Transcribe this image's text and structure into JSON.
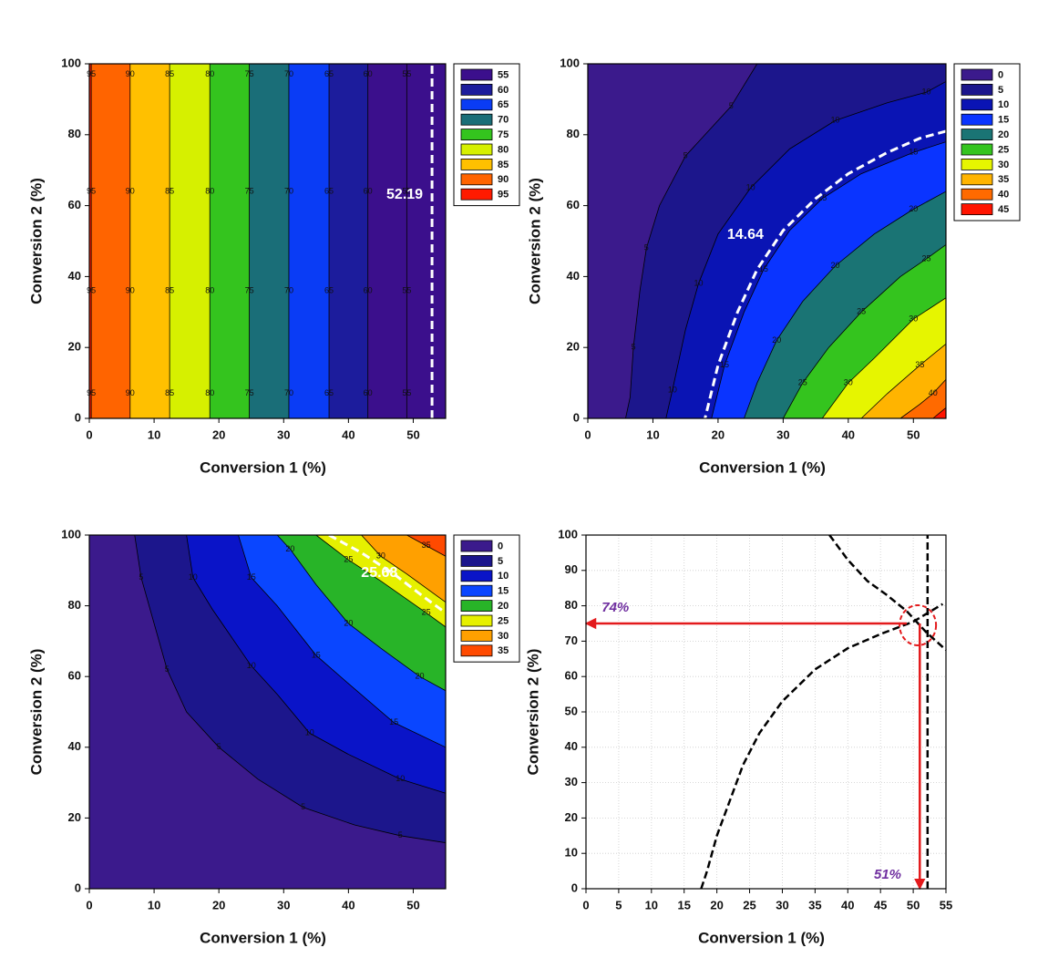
{
  "chart_data": [
    {
      "type": "contour",
      "xlabel": "Conversion 1 (%)",
      "ylabel": "Conversion 2 (%)",
      "xlim": [
        0,
        55
      ],
      "ylim": [
        0,
        100
      ],
      "xticks": [
        0,
        10,
        20,
        30,
        40,
        50
      ],
      "yticks": [
        0,
        20,
        40,
        60,
        80,
        100
      ],
      "levels": [
        55,
        60,
        65,
        70,
        75,
        80,
        85,
        90,
        95
      ],
      "level_colors": [
        "#3b0f8c",
        "#1c1c9c",
        "#0a3cf5",
        "#1a6e78",
        "#34c41e",
        "#d6f000",
        "#ffc000",
        "#ff6400",
        "#ff1a00"
      ],
      "contours": [
        {
          "level": 55,
          "x": [
            49,
            49,
            49,
            49,
            49,
            49,
            49,
            49,
            49
          ],
          "y": [
            0,
            7,
            20,
            36,
            50,
            64,
            80,
            97,
            100
          ]
        },
        {
          "level": 60,
          "x": [
            43,
            43,
            43,
            43,
            43,
            43,
            43,
            43,
            43
          ],
          "y": [
            0,
            7,
            20,
            36,
            50,
            64,
            80,
            97,
            100
          ]
        },
        {
          "level": 65,
          "x": [
            37,
            37,
            37,
            37,
            37,
            37,
            37,
            37,
            37
          ],
          "y": [
            0,
            7,
            20,
            36,
            50,
            64,
            80,
            97,
            100
          ]
        },
        {
          "level": 70,
          "x": [
            30.8,
            30.8,
            30.8,
            30.8,
            30.8,
            30.8,
            30.8,
            30.8,
            30.8
          ],
          "y": [
            0,
            7,
            20,
            36,
            50,
            64,
            80,
            97,
            100
          ]
        },
        {
          "level": 75,
          "x": [
            24.7,
            24.7,
            24.7,
            24.7,
            24.7,
            24.7,
            24.7,
            24.7,
            24.7
          ],
          "y": [
            0,
            7,
            20,
            36,
            50,
            64,
            80,
            97,
            100
          ]
        },
        {
          "level": 80,
          "x": [
            18.6,
            18.6,
            18.6,
            18.6,
            18.6,
            18.6,
            18.6,
            18.6,
            18.6
          ],
          "y": [
            0,
            7,
            20,
            36,
            50,
            64,
            80,
            97,
            100
          ]
        },
        {
          "level": 85,
          "x": [
            12.4,
            12.4,
            12.4,
            12.4,
            12.4,
            12.4,
            12.4,
            12.4,
            12.4
          ],
          "y": [
            0,
            7,
            20,
            36,
            50,
            64,
            80,
            97,
            100
          ]
        },
        {
          "level": 90,
          "x": [
            6.3,
            6.3,
            6.3,
            6.3,
            6.3,
            6.3,
            6.3,
            6.3,
            6.3
          ],
          "y": [
            0,
            7,
            20,
            36,
            50,
            64,
            80,
            97,
            100
          ]
        },
        {
          "level": 95,
          "x": [
            0.3,
            0.3,
            0.3,
            0.3,
            0.3,
            0.3,
            0.3,
            0.3,
            0.3
          ],
          "y": [
            0,
            7,
            20,
            36,
            50,
            64,
            80,
            97,
            100
          ]
        }
      ],
      "highlight": {
        "level": 52.19,
        "x": [
          52.9,
          52.9
        ],
        "y": [
          0,
          100
        ],
        "color": "#ffffff"
      }
    },
    {
      "type": "contour",
      "xlabel": "Conversion 1 (%)",
      "ylabel": "Conversion 2 (%)",
      "xlim": [
        0,
        55
      ],
      "ylim": [
        0,
        100
      ],
      "xticks": [
        0,
        10,
        20,
        30,
        40,
        50
      ],
      "yticks": [
        0,
        20,
        40,
        60,
        80,
        100
      ],
      "levels": [
        0,
        5,
        10,
        15,
        20,
        25,
        30,
        35,
        40,
        45
      ],
      "level_colors": [
        "#3b1a8c",
        "#1c168c",
        "#0a14b4",
        "#0a34ff",
        "#1a7474",
        "#34c41e",
        "#e6f500",
        "#ffb400",
        "#ff6a00",
        "#ff1400"
      ],
      "contours": [
        {
          "level": 5,
          "x": [
            26,
            22,
            19,
            15,
            11,
            9,
            8,
            7,
            6.5,
            5.8
          ],
          "y": [
            100,
            88,
            82,
            74,
            60,
            48,
            36,
            20,
            6,
            0
          ]
        },
        {
          "level": 10,
          "x": [
            55,
            52,
            46,
            38,
            31,
            25,
            20,
            17,
            15,
            13,
            12
          ],
          "y": [
            95,
            92,
            89,
            84,
            76,
            65,
            52,
            38,
            25,
            8,
            0
          ]
        },
        {
          "level": 15,
          "x": [
            55,
            50,
            42,
            36,
            31,
            27,
            24,
            21,
            19
          ],
          "y": [
            78,
            75,
            69,
            62,
            53,
            42,
            30,
            15,
            0
          ]
        },
        {
          "level": 20,
          "x": [
            55,
            50,
            44,
            38,
            33,
            29,
            26,
            24
          ],
          "y": [
            64,
            59,
            52,
            43,
            33,
            22,
            10,
            0
          ]
        },
        {
          "level": 25,
          "x": [
            55,
            52,
            48,
            42,
            37,
            33,
            30
          ],
          "y": [
            49,
            45,
            40,
            30,
            20,
            10,
            0
          ]
        },
        {
          "level": 30,
          "x": [
            55,
            50,
            44,
            40,
            36
          ],
          "y": [
            34,
            28,
            17,
            10,
            0
          ]
        },
        {
          "level": 35,
          "x": [
            55,
            51,
            46,
            42
          ],
          "y": [
            21,
            15,
            7,
            0
          ]
        },
        {
          "level": 40,
          "x": [
            55,
            53,
            51,
            48
          ],
          "y": [
            11,
            7,
            4,
            0
          ]
        },
        {
          "level": 45,
          "x": [
            55,
            53
          ],
          "y": [
            3,
            0
          ]
        }
      ],
      "highlight": {
        "level": 14.64,
        "x": [
          55,
          51,
          46,
          40,
          35,
          30,
          26,
          23,
          20,
          18
        ],
        "y": [
          81,
          79,
          75,
          69,
          62,
          53,
          42,
          30,
          15,
          0
        ],
        "color": "#ffffff"
      }
    },
    {
      "type": "contour",
      "xlabel": "Conversion 1 (%)",
      "ylabel": "Conversion 2 (%)",
      "xlim": [
        0,
        55
      ],
      "ylim": [
        0,
        100
      ],
      "xticks": [
        0,
        10,
        20,
        30,
        40,
        50
      ],
      "yticks": [
        0,
        20,
        40,
        60,
        80,
        100
      ],
      "levels": [
        0,
        5,
        10,
        15,
        20,
        25,
        30,
        35
      ],
      "level_colors": [
        "#3b1a8c",
        "#1c168c",
        "#0a14c8",
        "#0a46ff",
        "#28b428",
        "#e6f000",
        "#ffa000",
        "#ff4a00"
      ],
      "contours": [
        {
          "level": 5,
          "x": [
            7,
            8,
            10,
            12,
            15,
            20,
            26,
            33,
            41,
            48,
            55
          ],
          "y": [
            100,
            88,
            75,
            62,
            50,
            40,
            31,
            23,
            18,
            15,
            13
          ]
        },
        {
          "level": 10,
          "x": [
            15,
            16,
            19,
            25,
            29,
            34,
            40,
            48,
            55
          ],
          "y": [
            100,
            88,
            79,
            63,
            55,
            44,
            38,
            31,
            27
          ]
        },
        {
          "level": 15,
          "x": [
            23,
            25,
            29,
            35,
            40,
            47,
            55
          ],
          "y": [
            100,
            88,
            80,
            66,
            58,
            47,
            40
          ]
        },
        {
          "level": 20,
          "x": [
            29,
            31,
            35,
            40,
            45,
            51,
            55
          ],
          "y": [
            100,
            96,
            86,
            75,
            68,
            60,
            56
          ]
        },
        {
          "level": 25,
          "x": [
            35,
            40,
            45,
            52,
            55
          ],
          "y": [
            100,
            93,
            87,
            78,
            74
          ]
        },
        {
          "level": 30,
          "x": [
            42,
            45,
            49,
            55
          ],
          "y": [
            100,
            94,
            89,
            81
          ]
        },
        {
          "level": 35,
          "x": [
            49,
            52,
            55
          ],
          "y": [
            100,
            97,
            94
          ]
        }
      ],
      "highlight": {
        "level": 25.68,
        "x": [
          37,
          42,
          47,
          52,
          55
        ],
        "y": [
          100,
          95,
          89,
          82,
          78
        ],
        "color": "#ffffff"
      }
    },
    {
      "type": "line",
      "xlabel": "Conversion 1 (%)",
      "ylabel": "Conversion 2 (%)",
      "xlim": [
        0,
        55
      ],
      "ylim": [
        0,
        100
      ],
      "xticks": [
        0,
        5,
        10,
        15,
        20,
        25,
        30,
        35,
        40,
        45,
        50,
        55
      ],
      "yticks": [
        0,
        10,
        20,
        30,
        40,
        50,
        60,
        70,
        80,
        90,
        100
      ],
      "grid": true,
      "dashed": true,
      "series": [
        {
          "color": "#000000",
          "x": [
            52.19,
            52.19
          ],
          "values": [
            0,
            100
          ]
        },
        {
          "color": "#000000",
          "x": [
            17.6,
            18.5,
            20,
            22,
            24,
            26.5,
            30,
            35,
            40,
            45,
            50,
            54.5
          ],
          "values": [
            0,
            5,
            15,
            25,
            35,
            44,
            53,
            62,
            68,
            72,
            75.5,
            80.5
          ]
        },
        {
          "color": "#000000",
          "x": [
            37.2,
            40,
            43,
            46,
            49,
            52,
            55
          ],
          "values": [
            100,
            93,
            87,
            83,
            78.5,
            72.5,
            67.5
          ]
        }
      ],
      "arrows": [
        {
          "color": "#e31a1c",
          "x": [
            49,
            0
          ],
          "y": [
            75,
            75
          ]
        },
        {
          "color": "#e31a1c",
          "x": [
            51,
            51
          ],
          "y": [
            75,
            0
          ]
        }
      ],
      "marker": {
        "color": "#e31a1c",
        "x": 50.7,
        "y": 74.5
      },
      "annotations": [
        {
          "text": "74%",
          "x": 2.4,
          "y": 79.4,
          "color": "#7030a0"
        },
        {
          "text": "51%",
          "x": 44,
          "y": 3.9,
          "color": "#7030a0"
        }
      ]
    }
  ]
}
